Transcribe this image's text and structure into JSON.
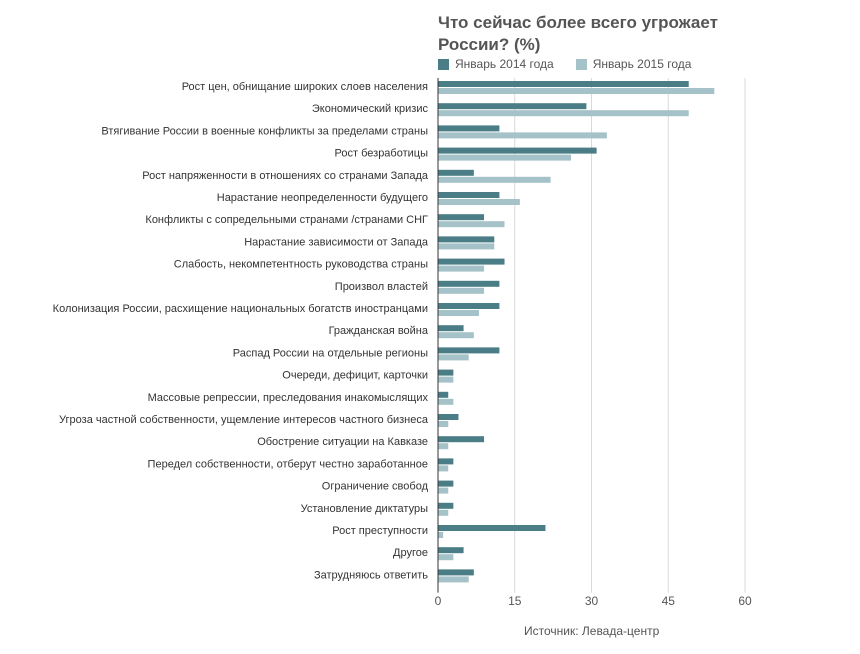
{
  "colors": {
    "series_2014": "#4a7d85",
    "series_2015": "#a4c2c7",
    "grid": "#d9d9d9",
    "axis": "#333333",
    "text": "#555555"
  },
  "chart_data": {
    "type": "bar",
    "orientation": "horizontal",
    "title": "Что сейчас более всего угрожает России? (%)",
    "xlim": [
      0,
      60
    ],
    "xticks": [
      0,
      15,
      30,
      45,
      60
    ],
    "grid": true,
    "legend_position": "top",
    "categories": [
      "Рост цен, обнищание широких слоев населения",
      "Экономический кризис",
      "Втягивание России в военные конфликты за пределами страны",
      "Рост безработицы",
      "Рост напряженности в отношениях со странами Запада",
      "Нарастание неопределенности будущего",
      "Конфликты с сопредельными странами /странами СНГ",
      "Нарастание зависимости от Запада",
      "Слабость, некомпетентность руководства страны",
      "Произвол властей",
      "Колонизация России, расхищение национальных богатств иностранцами",
      "Гражданская война",
      "Распад России на отдельные регионы",
      "Очереди, дефицит, карточки",
      "Массовые репрессии, преследования инакомыслящих",
      "Угроза частной собственности, ущемление интересов частного бизнеса",
      "Обострение ситуации на Кавказе",
      "Передел собственности, отберут честно заработанное",
      "Ограничение свобод",
      "Установление диктатуры",
      "Рост преступности",
      "Другое",
      "Затрудняюсь ответить"
    ],
    "series": [
      {
        "name": "Январь 2014 года",
        "values": [
          49,
          29,
          12,
          31,
          7,
          12,
          9,
          11,
          13,
          12,
          12,
          5,
          12,
          3,
          2,
          4,
          9,
          3,
          3,
          3,
          21,
          5,
          7
        ]
      },
      {
        "name": "Январь 2015 года",
        "values": [
          54,
          49,
          33,
          26,
          22,
          16,
          13,
          11,
          9,
          9,
          8,
          7,
          6,
          3,
          3,
          2,
          2,
          2,
          2,
          2,
          1,
          3,
          6
        ]
      }
    ],
    "source": "Источник: Левада-центр"
  }
}
